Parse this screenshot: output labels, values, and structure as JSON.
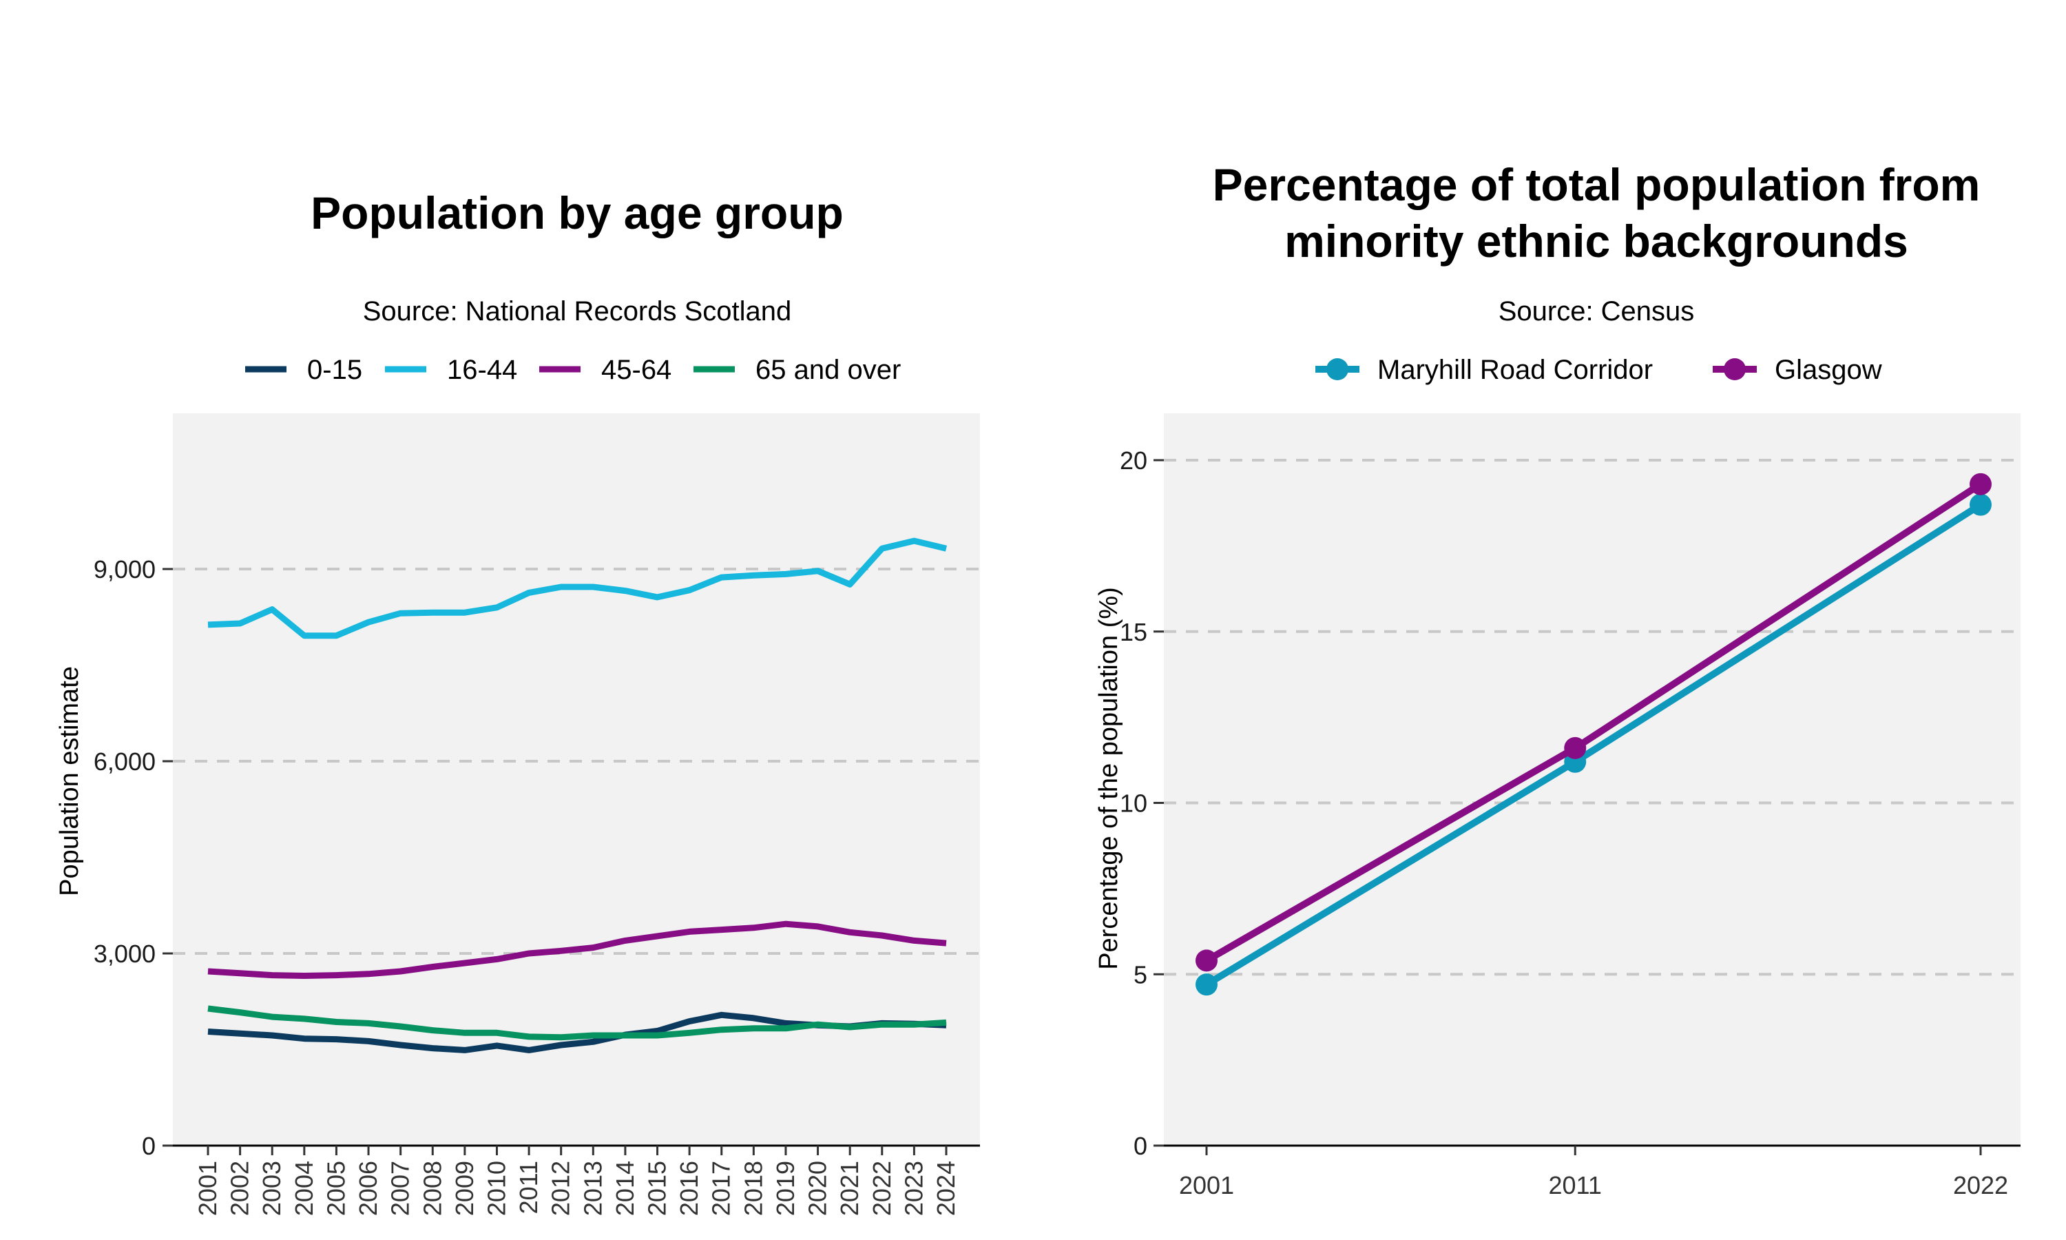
{
  "chart_data": [
    {
      "type": "line",
      "title": "Population by age group",
      "subtitle": "Source: National Records Scotland",
      "xlabel": "",
      "ylabel": "Population estimate",
      "ylim": [
        0,
        11500
      ],
      "y_ticks": [
        0,
        3000,
        6000,
        9000
      ],
      "y_tick_labels": [
        "0",
        "3,000",
        "6,000",
        "9,000"
      ],
      "x": [
        "2001",
        "2002",
        "2003",
        "2004",
        "2005",
        "2006",
        "2007",
        "2008",
        "2009",
        "2010",
        "2011",
        "2012",
        "2013",
        "2014",
        "2015",
        "2016",
        "2017",
        "2018",
        "2019",
        "2020",
        "2021",
        "2022",
        "2023",
        "2024"
      ],
      "grid": "horizontal dashed",
      "legend_position": "top",
      "series": [
        {
          "name": "0-15",
          "color": "#0b3a5e",
          "values": [
            1780,
            1750,
            1720,
            1670,
            1660,
            1630,
            1570,
            1520,
            1490,
            1560,
            1490,
            1570,
            1620,
            1730,
            1790,
            1940,
            2040,
            1990,
            1910,
            1880,
            1860,
            1910,
            1900,
            1880
          ]
        },
        {
          "name": "16-44",
          "color": "#18b7dd",
          "values": [
            8130,
            8150,
            8370,
            7960,
            7960,
            8170,
            8310,
            8320,
            8320,
            8400,
            8630,
            8720,
            8720,
            8660,
            8560,
            8670,
            8870,
            8900,
            8920,
            8970,
            8760,
            9320,
            9440,
            9320
          ]
        },
        {
          "name": "45-64",
          "color": "#870d85",
          "values": [
            2720,
            2690,
            2660,
            2650,
            2660,
            2680,
            2720,
            2790,
            2850,
            2910,
            3000,
            3040,
            3090,
            3200,
            3270,
            3340,
            3370,
            3400,
            3460,
            3420,
            3330,
            3280,
            3200,
            3160
          ]
        },
        {
          "name": "65 and over",
          "color": "#069361",
          "values": [
            2140,
            2080,
            2010,
            1980,
            1930,
            1910,
            1860,
            1800,
            1760,
            1760,
            1700,
            1690,
            1720,
            1720,
            1720,
            1760,
            1810,
            1830,
            1830,
            1890,
            1850,
            1890,
            1890,
            1920
          ]
        }
      ]
    },
    {
      "type": "line",
      "title_lines": [
        "Percentage of total population from",
        "minority ethnic backgrounds"
      ],
      "subtitle": "Source: Census",
      "xlabel": "",
      "ylabel": "Percentage of the population (%)",
      "ylim": [
        0,
        21.4
      ],
      "y_ticks": [
        0,
        5,
        10,
        15,
        20
      ],
      "y_tick_labels": [
        "0",
        "5",
        "10",
        "15",
        "20"
      ],
      "x": [
        "2001",
        "2011",
        "2022"
      ],
      "x_numeric": [
        2001,
        2011,
        2022
      ],
      "grid": "horizontal dashed",
      "legend_position": "top",
      "series": [
        {
          "name": "Maryhill Road Corridor",
          "color": "#0e98bb",
          "values": [
            4.7,
            11.2,
            18.7
          ]
        },
        {
          "name": "Glasgow",
          "color": "#870d85",
          "values": [
            5.4,
            11.6,
            19.3
          ]
        }
      ]
    }
  ]
}
